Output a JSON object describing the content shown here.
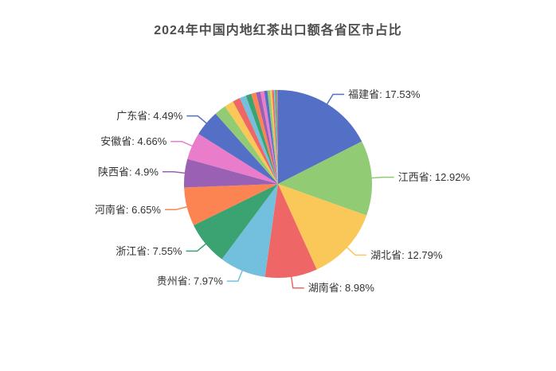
{
  "title": {
    "text": "2024年中国内地红茶出口额各省区市占比"
  },
  "colors": {
    "background": "#ffffff",
    "title_text": "#4d4d4d",
    "label_text": "#333333",
    "palette": [
      "#5470c6",
      "#91cc75",
      "#fac858",
      "#ee6666",
      "#73c0de",
      "#3ba272",
      "#fc8452",
      "#9a60b4",
      "#ea7ccc"
    ]
  },
  "chart_data": {
    "type": "pie",
    "title": "2024年中国内地红茶出口额各省区市占比",
    "unit": "%",
    "start_angle_deg": 0,
    "direction": "clockwise",
    "legend": "none",
    "label_format": "name: value%",
    "slices": [
      {
        "name": "福建省",
        "value": 17.53,
        "label": "福建省: 17.53%"
      },
      {
        "name": "江西省",
        "value": 12.92,
        "label": "江西省: 12.92%"
      },
      {
        "name": "湖北省",
        "value": 12.79,
        "label": "湖北省: 12.79%"
      },
      {
        "name": "湖南省",
        "value": 8.98,
        "label": "湖南省: 8.98%"
      },
      {
        "name": "贵州省",
        "value": 7.97,
        "label": "贵州省: 7.97%"
      },
      {
        "name": "浙江省",
        "value": 7.55,
        "label": "浙江省: 7.55%"
      },
      {
        "name": "河南省",
        "value": 6.65,
        "label": "河南省: 6.65%"
      },
      {
        "name": "陕西省",
        "value": 4.9,
        "label": "陕西省: 4.9%"
      },
      {
        "name": "安徽省",
        "value": 4.66,
        "label": "安徽省: 4.66%"
      },
      {
        "name": "广东省",
        "value": 4.49,
        "label": "广东省: 4.49%"
      }
    ],
    "unlabeled_slices_estimated_values": [
      2.0,
      1.6,
      1.3,
      1.1,
      0.95,
      0.85,
      0.75,
      0.65,
      0.55,
      0.45,
      0.35,
      0.3,
      0.25,
      0.2,
      0.15,
      0.11
    ],
    "labeled_total_pct": 88.44,
    "unlabeled_total_pct": 11.56
  }
}
